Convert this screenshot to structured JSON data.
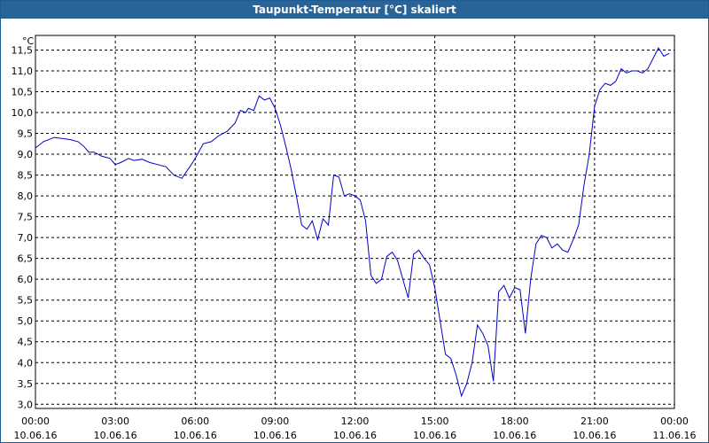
{
  "window": {
    "title": "Taupunkt-Temperatur [°C] skaliert"
  },
  "chart_data": {
    "type": "line",
    "title": "Taupunkt-Temperatur [°C] skaliert",
    "ylabel": "°C",
    "xlabel": "",
    "ylim": [
      2.9,
      11.85
    ],
    "xlim": [
      0,
      24
    ],
    "grid": true,
    "line_color": "#0000cc",
    "y_ticks": [
      "3,0",
      "3,5",
      "4,0",
      "4,5",
      "5,0",
      "5,5",
      "6,0",
      "6,5",
      "7,0",
      "7,5",
      "8,0",
      "8,5",
      "9,0",
      "9,5",
      "10,0",
      "10,5",
      "11,0",
      "11,5"
    ],
    "y_tick_values": [
      3.0,
      3.5,
      4.0,
      4.5,
      5.0,
      5.5,
      6.0,
      6.5,
      7.0,
      7.5,
      8.0,
      8.5,
      9.0,
      9.5,
      10.0,
      10.5,
      11.0,
      11.5
    ],
    "x_tick_hours": [
      0,
      3,
      6,
      9,
      12,
      15,
      18,
      21,
      24
    ],
    "x_ticks": [
      {
        "time": "00:00",
        "date": "10.06.16"
      },
      {
        "time": "03:00",
        "date": "10.06.16"
      },
      {
        "time": "06:00",
        "date": "10.06.16"
      },
      {
        "time": "09:00",
        "date": "10.06.16"
      },
      {
        "time": "12:00",
        "date": "10.06.16"
      },
      {
        "time": "15:00",
        "date": "10.06.16"
      },
      {
        "time": "18:00",
        "date": "10.06.16"
      },
      {
        "time": "21:00",
        "date": "10.06.16"
      },
      {
        "time": "00:00",
        "date": "11.06.16"
      }
    ],
    "series": [
      {
        "x": [
          0,
          0.3,
          0.7,
          1.0,
          1.3,
          1.6,
          1.8,
          2.0,
          2.2,
          2.5,
          2.8,
          3.0,
          3.2,
          3.5,
          3.7,
          4.0,
          4.3,
          4.6,
          4.9,
          5.2,
          5.5,
          5.8,
          6.0,
          6.3,
          6.6,
          6.9,
          7.2,
          7.5,
          7.7,
          7.9,
          8.0,
          8.2,
          8.4,
          8.6,
          8.8,
          9.0,
          9.2,
          9.4,
          9.6,
          9.8,
          10.0,
          10.2,
          10.4,
          10.6,
          10.8,
          11.0,
          11.2,
          11.4,
          11.6,
          11.8,
          12.0,
          12.2,
          12.4,
          12.6,
          12.8,
          13.0,
          13.2,
          13.4,
          13.6,
          13.8,
          14.0,
          14.2,
          14.4,
          14.6,
          14.8,
          15.0,
          15.2,
          15.4,
          15.6,
          15.8,
          16.0,
          16.2,
          16.4,
          16.6,
          16.8,
          17.0,
          17.2,
          17.4,
          17.6,
          17.8,
          18.0,
          18.2,
          18.4,
          18.6,
          18.8,
          19.0,
          19.2,
          19.4,
          19.6,
          19.8,
          20.0,
          20.2,
          20.4,
          20.6,
          20.8,
          21.0,
          21.2,
          21.4,
          21.6,
          21.8,
          22.0,
          22.2,
          22.4,
          22.6,
          22.8,
          23.0,
          23.2,
          23.4,
          23.6,
          23.8
        ],
        "y": [
          9.15,
          9.3,
          9.4,
          9.38,
          9.35,
          9.3,
          9.2,
          9.05,
          9.05,
          8.95,
          8.9,
          8.75,
          8.8,
          8.9,
          8.85,
          8.88,
          8.8,
          8.75,
          8.7,
          8.5,
          8.42,
          8.7,
          8.9,
          9.25,
          9.3,
          9.45,
          9.55,
          9.75,
          10.05,
          10.0,
          10.1,
          10.05,
          10.4,
          10.3,
          10.35,
          10.1,
          9.7,
          9.2,
          8.65,
          8.0,
          7.3,
          7.2,
          7.4,
          6.95,
          7.45,
          7.3,
          8.5,
          8.45,
          8.0,
          8.05,
          8.0,
          7.9,
          7.4,
          6.1,
          5.9,
          6.0,
          6.55,
          6.65,
          6.45,
          6.0,
          5.55,
          6.6,
          6.7,
          6.5,
          6.35,
          5.8,
          5.0,
          4.2,
          4.1,
          3.7,
          3.2,
          3.5,
          4.0,
          4.9,
          4.7,
          4.4,
          3.55,
          5.7,
          5.85,
          5.55,
          5.8,
          5.75,
          4.7,
          6.0,
          6.85,
          7.05,
          7.0,
          6.75,
          6.85,
          6.7,
          6.65,
          6.95,
          7.3,
          8.25,
          9.0,
          10.15,
          10.55,
          10.7,
          10.65,
          10.75,
          11.05,
          10.95,
          11.0,
          11.0,
          10.95,
          11.05,
          11.3,
          11.55,
          11.35,
          11.42
        ]
      }
    ]
  }
}
